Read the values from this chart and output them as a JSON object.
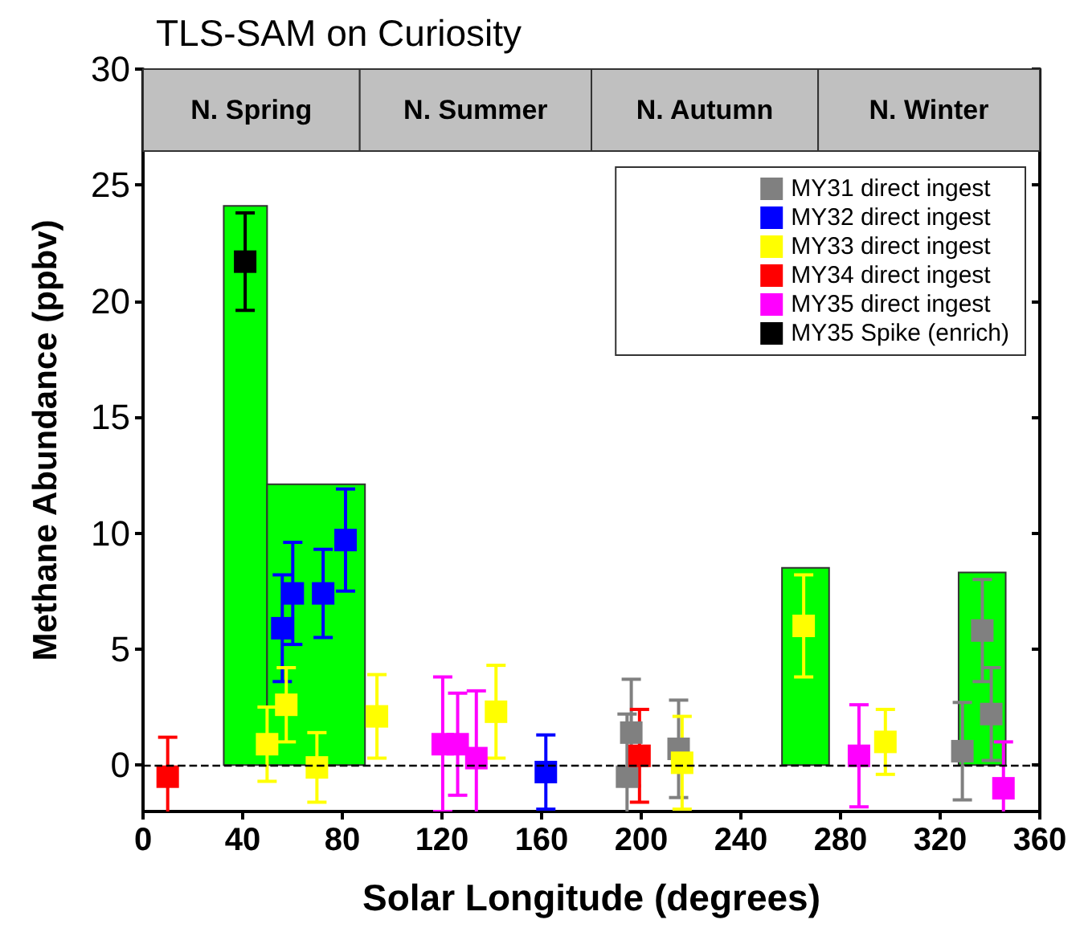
{
  "chart_data": {
    "type": "scatter",
    "title": "TLS-SAM on Curiosity",
    "xlabel": "Solar Longitude (degrees)",
    "ylabel": "Methane Abundance (ppbv)",
    "xlim": [
      0,
      360
    ],
    "xticks": [
      0,
      40,
      80,
      120,
      160,
      200,
      240,
      280,
      320,
      360
    ],
    "ylim": [
      -2,
      30
    ],
    "yticks": [
      0,
      5,
      10,
      15,
      20,
      25,
      30
    ],
    "grid": false,
    "legend": "top right",
    "marker": "square",
    "bands": [
      {
        "axis": "x",
        "from": 0,
        "to": 87,
        "label": "N. Spring",
        "color": "#c0c0c0"
      },
      {
        "axis": "x",
        "from": 87,
        "to": 180,
        "label": "N. Summer",
        "color": "#c0c0c0"
      },
      {
        "axis": "x",
        "from": 180,
        "to": 271,
        "label": "N. Autumn",
        "color": "#c0c0c0"
      },
      {
        "axis": "x",
        "from": 271,
        "to": 360,
        "label": "N. Winter",
        "color": "#c0c0c0"
      }
    ],
    "ref_lines": [
      {
        "axis": "y",
        "value": 0,
        "color": "#000000",
        "line_style": "dashed"
      }
    ],
    "series": [
      {
        "type": "histogram",
        "color": "#00ff00",
        "bins": [
          32.4,
          49.8,
          89.1,
          256.5,
          275.4,
          327.4,
          346.3
        ],
        "values": [
          24.1,
          12.1,
          null,
          8.5,
          null,
          8.3
        ]
      },
      {
        "name": "MY31 direct ingest",
        "color": "#808080",
        "x": [
          194.3,
          196.0,
          215.0,
          328.9,
          336.9,
          340.5
        ],
        "values": [
          -0.5,
          1.4,
          0.7,
          0.6,
          5.8,
          2.2
        ],
        "errors": [
          2.7,
          2.3,
          2.1,
          2.1,
          2.2,
          2.0
        ]
      },
      {
        "name": "MY32 direct ingest",
        "color": "#0000ff",
        "x": [
          55.9,
          60.1,
          72.3,
          81.3,
          161.7
        ],
        "values": [
          5.9,
          7.4,
          7.4,
          9.7,
          -0.3
        ],
        "errors": [
          2.3,
          2.2,
          1.9,
          2.2,
          1.6
        ]
      },
      {
        "name": "MY33 direct ingest",
        "color": "#ffff00",
        "x": [
          49.8,
          57.5,
          69.8,
          93.9,
          141.7,
          216.4,
          265.2,
          298.0
        ],
        "values": [
          0.9,
          2.6,
          -0.1,
          2.1,
          2.3,
          0.1,
          6.0,
          1.0
        ],
        "errors": [
          1.6,
          1.6,
          1.5,
          1.8,
          2.0,
          2.0,
          2.2,
          1.4
        ]
      },
      {
        "name": "MY34 direct ingest",
        "color": "#ff0000",
        "x": [
          9.9,
          199.3
        ],
        "values": [
          -0.5,
          0.4
        ],
        "errors": [
          1.7,
          2.0
        ]
      },
      {
        "name": "MY35 direct ingest",
        "color": "#ff00ff",
        "x": [
          120.3,
          126.3,
          133.8,
          287.4,
          345.4
        ],
        "values": [
          0.9,
          0.9,
          0.3,
          0.4,
          -1.0
        ],
        "errors": [
          2.9,
          2.2,
          2.9,
          2.2,
          2.0
        ]
      },
      {
        "name": "MY35 Spike (enrich)",
        "color": "#000000",
        "x": [
          41.0
        ],
        "values": [
          21.7
        ],
        "errors": [
          2.1
        ]
      }
    ]
  }
}
